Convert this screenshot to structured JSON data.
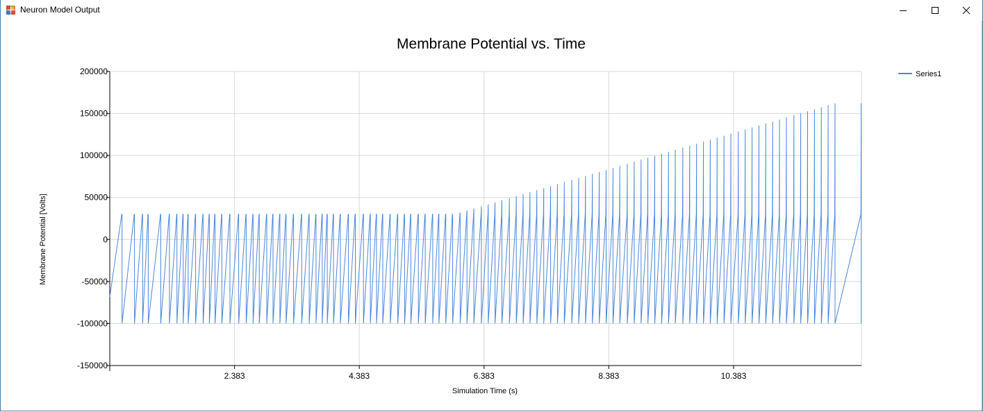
{
  "window": {
    "title": "Neuron Model Output",
    "controls": {
      "minimize": "minimize",
      "maximize": "maximize",
      "close": "close"
    }
  },
  "chart_data": {
    "type": "line",
    "title": "Membrane Potential vs. Time",
    "xlabel": "Simulation Time (s)",
    "ylabel": "Membrane Potential [Volts]",
    "ylim": [
      -150000,
      200000
    ],
    "xlim": [
      0.383,
      12.433
    ],
    "y_ticks": [
      -150000,
      -100000,
      -50000,
      0,
      50000,
      100000,
      150000,
      200000
    ],
    "y_tick_labels": [
      "-150000",
      "-100000",
      "-50000",
      "0",
      "50000",
      "100000",
      "150000",
      "200000"
    ],
    "x_ticks": [
      2.383,
      4.383,
      6.383,
      8.383,
      10.383
    ],
    "x_tick_labels": [
      "2.383",
      "4.383",
      "6.383",
      "8.383",
      "10.383"
    ],
    "grid": true,
    "legend_position": "top-right",
    "line_color": "#4a86d8",
    "series": [
      {
        "name": "Series1",
        "spike_times": [
          0.58,
          0.78,
          0.91,
          1.0,
          1.2,
          1.34,
          1.46,
          1.56,
          1.64,
          1.76,
          1.88,
          1.98,
          2.07,
          2.18,
          2.31,
          2.45,
          2.57,
          2.68,
          2.78,
          2.9,
          3.0,
          3.11,
          3.21,
          3.33,
          3.46,
          3.58,
          3.69,
          3.79,
          3.87,
          3.97,
          4.08,
          4.21,
          4.32,
          4.45,
          4.56,
          4.66,
          4.76,
          4.88,
          5.0,
          5.11,
          5.21,
          5.33,
          5.44,
          5.56,
          5.66,
          5.77,
          5.88,
          6.0,
          6.11,
          6.22,
          6.34,
          6.45,
          6.56,
          6.67,
          6.79,
          6.9,
          7.01,
          7.12,
          7.23,
          7.34,
          7.45,
          7.56,
          7.67,
          7.79,
          7.9,
          8.01,
          8.12,
          8.23,
          8.34,
          8.45,
          8.56,
          8.68,
          8.79,
          8.9,
          9.01,
          9.12,
          9.23,
          9.34,
          9.45,
          9.57,
          9.68,
          9.79,
          9.9,
          10.01,
          10.12,
          10.23,
          10.34,
          10.46,
          10.57,
          10.68,
          10.79,
          10.9,
          11.01,
          11.12,
          11.23,
          11.35,
          11.46,
          11.57,
          11.68,
          11.79,
          11.9,
          12.01,
          12.43
        ],
        "spike_peak_plateau": 30000,
        "spike_peak_rise_start_time": 5.9,
        "spike_peak_final": 162000,
        "reset_potential": -100000,
        "initial_potential": -68000
      }
    ]
  }
}
